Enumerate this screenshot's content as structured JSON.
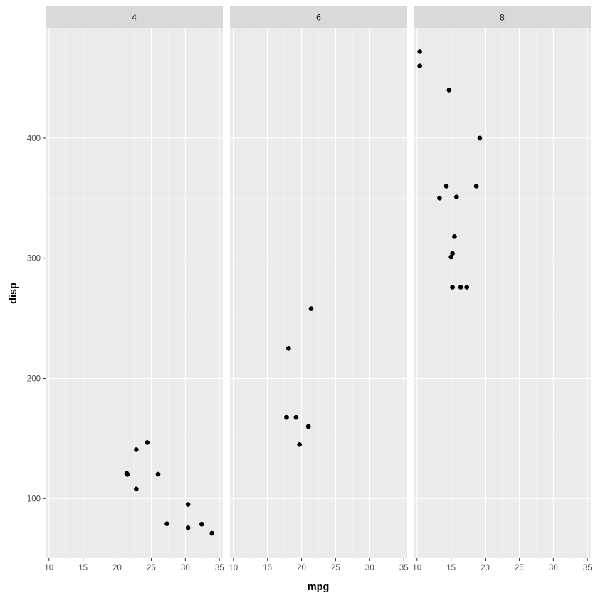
{
  "chart_data": {
    "type": "scatter",
    "xlabel": "mpg",
    "ylabel": "disp",
    "xlim": [
      9.5,
      35.5
    ],
    "ylim": [
      50.4,
      491.2
    ],
    "x_ticks": [
      10,
      15,
      20,
      25,
      30,
      35
    ],
    "y_ticks": [
      100,
      200,
      300,
      400
    ],
    "x_minor": [
      12.5,
      17.5,
      22.5,
      27.5,
      32.5
    ],
    "y_minor": [
      50,
      150,
      250,
      350,
      450
    ],
    "grid": true,
    "facets": [
      {
        "label": "4",
        "points": [
          {
            "x": 22.8,
            "y": 108
          },
          {
            "x": 24.4,
            "y": 146.7
          },
          {
            "x": 22.8,
            "y": 140.8
          },
          {
            "x": 32.4,
            "y": 78.7
          },
          {
            "x": 30.4,
            "y": 75.7
          },
          {
            "x": 33.9,
            "y": 71.1
          },
          {
            "x": 21.5,
            "y": 120.1
          },
          {
            "x": 27.3,
            "y": 79
          },
          {
            "x": 26,
            "y": 120.3
          },
          {
            "x": 30.4,
            "y": 95.1
          },
          {
            "x": 21.4,
            "y": 121
          }
        ]
      },
      {
        "label": "6",
        "points": [
          {
            "x": 21,
            "y": 160
          },
          {
            "x": 21,
            "y": 160
          },
          {
            "x": 21.4,
            "y": 258
          },
          {
            "x": 18.1,
            "y": 225
          },
          {
            "x": 19.2,
            "y": 167.6
          },
          {
            "x": 17.8,
            "y": 167.6
          },
          {
            "x": 19.7,
            "y": 145
          }
        ]
      },
      {
        "label": "8",
        "points": [
          {
            "x": 18.7,
            "y": 360
          },
          {
            "x": 14.3,
            "y": 360
          },
          {
            "x": 16.4,
            "y": 275.8
          },
          {
            "x": 17.3,
            "y": 275.8
          },
          {
            "x": 15.2,
            "y": 275.8
          },
          {
            "x": 10.4,
            "y": 472
          },
          {
            "x": 10.4,
            "y": 460
          },
          {
            "x": 14.7,
            "y": 440
          },
          {
            "x": 15.5,
            "y": 318
          },
          {
            "x": 15.2,
            "y": 304
          },
          {
            "x": 13.3,
            "y": 350
          },
          {
            "x": 19.2,
            "y": 400
          },
          {
            "x": 15.8,
            "y": 351
          },
          {
            "x": 15,
            "y": 301
          }
        ]
      }
    ]
  },
  "colors": {
    "panel_background": "#ebebeb",
    "strip_background": "#d9d9d9",
    "grid_major": "#ffffff",
    "grid_minor": "#f5f5f5",
    "point": "#000000",
    "tick": "#333333"
  }
}
